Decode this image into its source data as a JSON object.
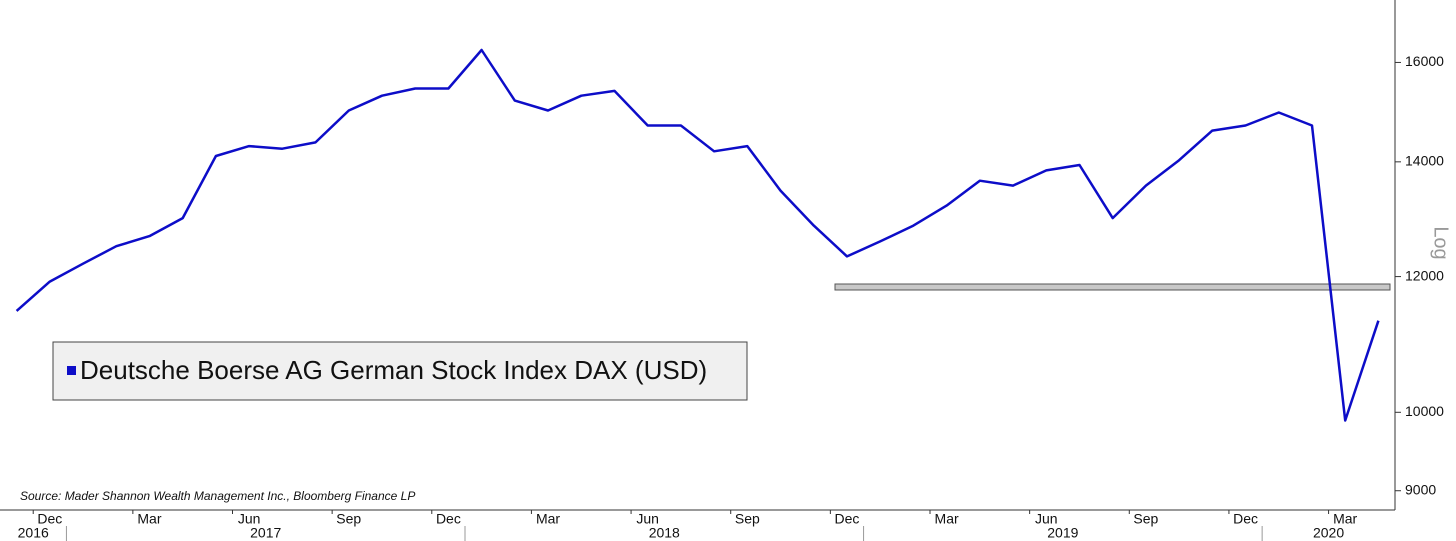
{
  "chart_data": {
    "type": "line",
    "x": [
      "2016-11",
      "2016-12",
      "2017-01",
      "2017-02",
      "2017-03",
      "2017-04",
      "2017-05",
      "2017-06",
      "2017-07",
      "2017-08",
      "2017-09",
      "2017-10",
      "2017-11",
      "2017-12",
      "2018-01",
      "2018-02",
      "2018-03",
      "2018-04",
      "2018-05",
      "2018-06",
      "2018-07",
      "2018-08",
      "2018-09",
      "2018-10",
      "2018-11",
      "2018-12",
      "2019-01",
      "2019-02",
      "2019-03",
      "2019-04",
      "2019-05",
      "2019-06",
      "2019-07",
      "2019-08",
      "2019-09",
      "2019-10",
      "2019-11",
      "2019-12",
      "2020-01",
      "2020-02",
      "2020-03",
      "2020-04"
    ],
    "series": [
      {
        "name": "Deutsche Boerse AG German Stock Index DAX (USD)",
        "color": "#0d0dc8",
        "values": [
          11460,
          11920,
          12210,
          12500,
          12670,
          12980,
          14110,
          14300,
          14250,
          14370,
          15000,
          15300,
          15450,
          15450,
          16270,
          15200,
          15000,
          15300,
          15400,
          14700,
          14700,
          14200,
          14300,
          13470,
          12850,
          12330,
          12580,
          12850,
          13200,
          13650,
          13560,
          13840,
          13940,
          12980,
          13560,
          14030,
          14600,
          14700,
          14960,
          14700,
          9890,
          11310
        ]
      }
    ],
    "xlim": [
      "2016-11",
      "2020-05"
    ],
    "xticks": [
      {
        "value": "2016-12",
        "label": "Dec"
      },
      {
        "value": "2017-03",
        "label": "Mar"
      },
      {
        "value": "2017-06",
        "label": "Jun"
      },
      {
        "value": "2017-09",
        "label": "Sep"
      },
      {
        "value": "2017-12",
        "label": "Dec"
      },
      {
        "value": "2018-03",
        "label": "Mar"
      },
      {
        "value": "2018-06",
        "label": "Jun"
      },
      {
        "value": "2018-09",
        "label": "Sep"
      },
      {
        "value": "2018-12",
        "label": "Dec"
      },
      {
        "value": "2019-03",
        "label": "Mar"
      },
      {
        "value": "2019-06",
        "label": "Jun"
      },
      {
        "value": "2019-09",
        "label": "Sep"
      },
      {
        "value": "2019-12",
        "label": "Dec"
      },
      {
        "value": "2020-03",
        "label": "Mar"
      }
    ],
    "x_years": [
      "2016",
      "2017",
      "2018",
      "2019",
      "2020"
    ],
    "ylim": [
      8770,
      17400
    ],
    "yticks": [
      9000,
      10000,
      12000,
      14000,
      16000
    ],
    "yscale": "log",
    "y_axis_label": "Log",
    "source": "Source: Mader Shannon Wealth Management Inc., Bloomberg Finance LP"
  }
}
